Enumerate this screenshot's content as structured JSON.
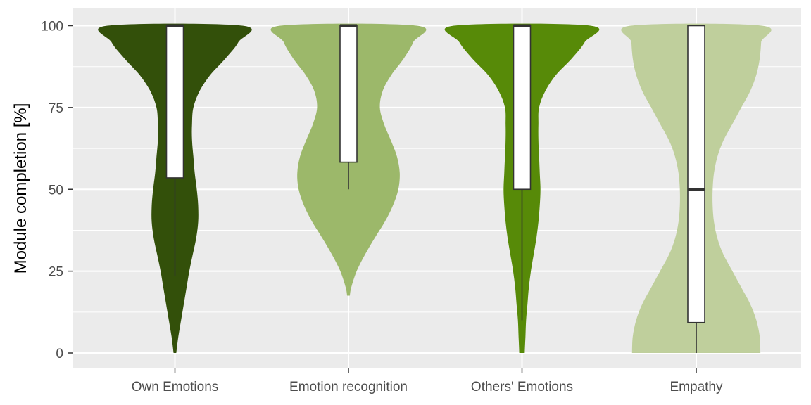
{
  "chart_data": {
    "type": "violin",
    "title": "",
    "xlabel": "",
    "ylabel": "Module completion [%]",
    "ylim": [
      -5,
      105
    ],
    "yticks": [
      0,
      25,
      50,
      75,
      100
    ],
    "grid": true,
    "legend": "none",
    "categories": [
      "Own Emotions",
      "Emotion recognition",
      "Others' Emotions",
      "Empathy"
    ],
    "colors": [
      "#33500a",
      "#9cb86a",
      "#578a08",
      "#bfcf9c"
    ],
    "groups": [
      {
        "name": "Own Emotions",
        "range": [
          0,
          100
        ],
        "density": [
          [
            0,
            0.02
          ],
          [
            5,
            0.05
          ],
          [
            10,
            0.09
          ],
          [
            15,
            0.13
          ],
          [
            20,
            0.17
          ],
          [
            25,
            0.21
          ],
          [
            30,
            0.26
          ],
          [
            35,
            0.31
          ],
          [
            40,
            0.34
          ],
          [
            45,
            0.34
          ],
          [
            50,
            0.32
          ],
          [
            55,
            0.29
          ],
          [
            60,
            0.27
          ],
          [
            65,
            0.25
          ],
          [
            70,
            0.25
          ],
          [
            75,
            0.27
          ],
          [
            80,
            0.36
          ],
          [
            85,
            0.52
          ],
          [
            90,
            0.74
          ],
          [
            95,
            0.93
          ],
          [
            100,
            0.99
          ]
        ],
        "box": {
          "min": 23.5,
          "q1": 53.5,
          "median": 100,
          "q3": 100,
          "max": 100
        }
      },
      {
        "name": "Emotion recognition",
        "range": [
          17.5,
          100
        ],
        "density": [
          [
            17.5,
            0.02
          ],
          [
            20,
            0.04
          ],
          [
            25,
            0.12
          ],
          [
            30,
            0.24
          ],
          [
            35,
            0.38
          ],
          [
            40,
            0.53
          ],
          [
            45,
            0.65
          ],
          [
            50,
            0.73
          ],
          [
            55,
            0.75
          ],
          [
            60,
            0.71
          ],
          [
            65,
            0.62
          ],
          [
            70,
            0.52
          ],
          [
            75,
            0.46
          ],
          [
            80,
            0.5
          ],
          [
            85,
            0.63
          ],
          [
            90,
            0.81
          ],
          [
            95,
            0.95
          ],
          [
            100,
            1.0
          ]
        ],
        "box": {
          "min": 50,
          "q1": 58.3,
          "median": 100,
          "q3": 100,
          "max": 100
        }
      },
      {
        "name": "Others' Emotions",
        "range": [
          0,
          100
        ],
        "density": [
          [
            0,
            0.04
          ],
          [
            5,
            0.05
          ],
          [
            10,
            0.06
          ],
          [
            15,
            0.08
          ],
          [
            20,
            0.1
          ],
          [
            25,
            0.13
          ],
          [
            30,
            0.17
          ],
          [
            35,
            0.21
          ],
          [
            40,
            0.24
          ],
          [
            45,
            0.26
          ],
          [
            50,
            0.27
          ],
          [
            55,
            0.26
          ],
          [
            60,
            0.25
          ],
          [
            65,
            0.24
          ],
          [
            70,
            0.24
          ],
          [
            75,
            0.25
          ],
          [
            80,
            0.34
          ],
          [
            85,
            0.5
          ],
          [
            90,
            0.73
          ],
          [
            95,
            0.92
          ],
          [
            100,
            1.0
          ]
        ],
        "box": {
          "min": 10,
          "q1": 50,
          "median": 100,
          "q3": 100,
          "max": 100
        }
      },
      {
        "name": "Empathy",
        "range": [
          0,
          100
        ],
        "density": [
          [
            0,
            0.94
          ],
          [
            5,
            0.93
          ],
          [
            10,
            0.88
          ],
          [
            15,
            0.79
          ],
          [
            20,
            0.66
          ],
          [
            25,
            0.53
          ],
          [
            30,
            0.4
          ],
          [
            35,
            0.31
          ],
          [
            40,
            0.26
          ],
          [
            45,
            0.24
          ],
          [
            50,
            0.24
          ],
          [
            55,
            0.26
          ],
          [
            60,
            0.31
          ],
          [
            65,
            0.4
          ],
          [
            70,
            0.53
          ],
          [
            75,
            0.66
          ],
          [
            80,
            0.79
          ],
          [
            85,
            0.88
          ],
          [
            90,
            0.93
          ],
          [
            95,
            0.95
          ],
          [
            100,
            0.96
          ]
        ],
        "box": {
          "min": 0,
          "q1": 9.3,
          "median": 50,
          "q3": 100,
          "max": 100
        }
      }
    ]
  }
}
